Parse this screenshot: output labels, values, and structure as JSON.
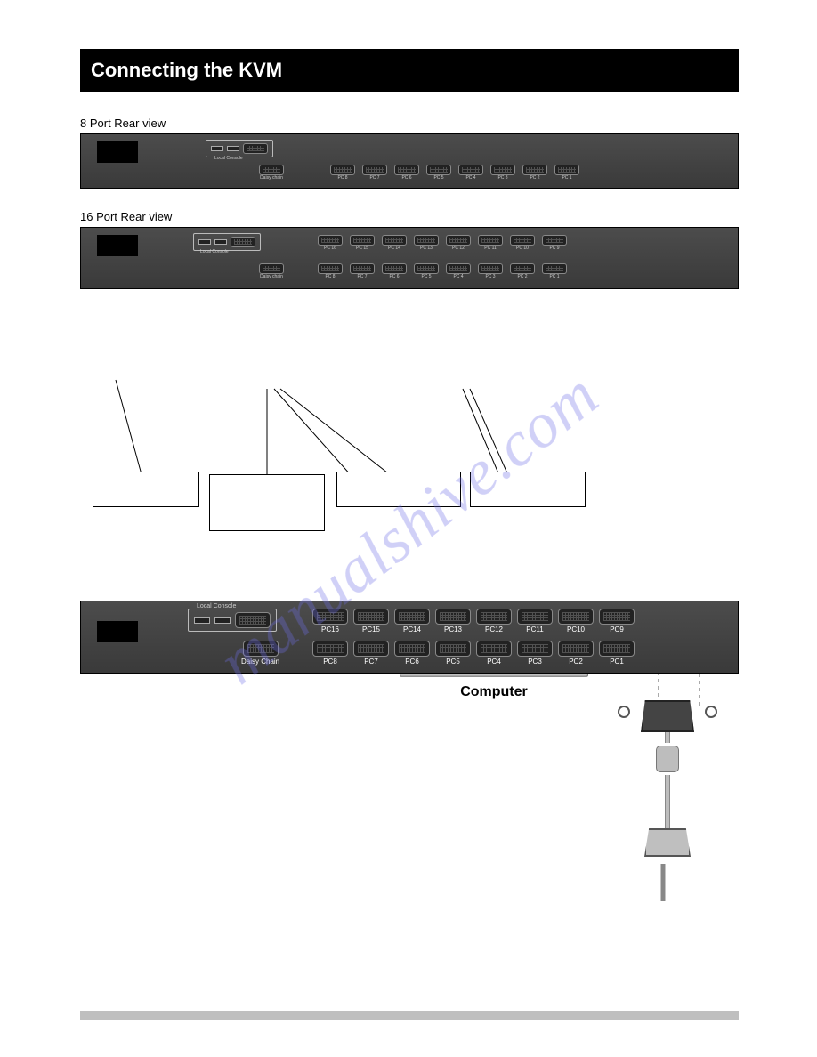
{
  "section": {
    "title": "Connecting the KVM"
  },
  "intro": {
    "line1_a": "",
    "line1_bold": "",
    "line1_b": ""
  },
  "fig1": {
    "caption": "8 Port Rear view"
  },
  "fig2": {
    "caption": "16 Port Rear view"
  },
  "kvm8": {
    "console_label": "Local Console",
    "daisy_label": "Daisy chain",
    "ports": [
      "PC 8",
      "PC 7",
      "PC 6",
      "PC 5",
      "PC 4",
      "PC 3",
      "PC 2",
      "PC 1"
    ]
  },
  "kvm16": {
    "console_label": "Local Console",
    "daisy_label": "Daisy chain",
    "top_ports": [
      "PC 16",
      "PC 15",
      "PC 14",
      "PC 13",
      "PC 12",
      "PC 11",
      "PC 10",
      "PC 9"
    ],
    "bot_ports": [
      "PC 8",
      "PC 7",
      "PC 6",
      "PC 5",
      "PC 4",
      "PC 3",
      "PC 2",
      "PC 1"
    ]
  },
  "callouts": {
    "c1": "",
    "c2": "",
    "c3": "",
    "c4": ""
  },
  "subsection": {
    "title": "",
    "text_a": "",
    "text_b": ""
  },
  "computer": {
    "label": "Computer"
  },
  "kvm_big": {
    "console_label": "Local Console",
    "daisy_label": "Daisy Chain",
    "top_ports": [
      "PC16",
      "PC15",
      "PC14",
      "PC13",
      "PC12",
      "PC11",
      "PC10",
      "PC9"
    ],
    "bot_ports": [
      "PC8",
      "PC7",
      "PC6",
      "PC5",
      "PC4",
      "PC3",
      "PC2",
      "PC1"
    ]
  },
  "watermark": "manualshive.com",
  "footer": {
    "left": "",
    "right": ""
  },
  "colors": {
    "bar": "#3f3f3f",
    "accent": "#6e6ee6"
  }
}
